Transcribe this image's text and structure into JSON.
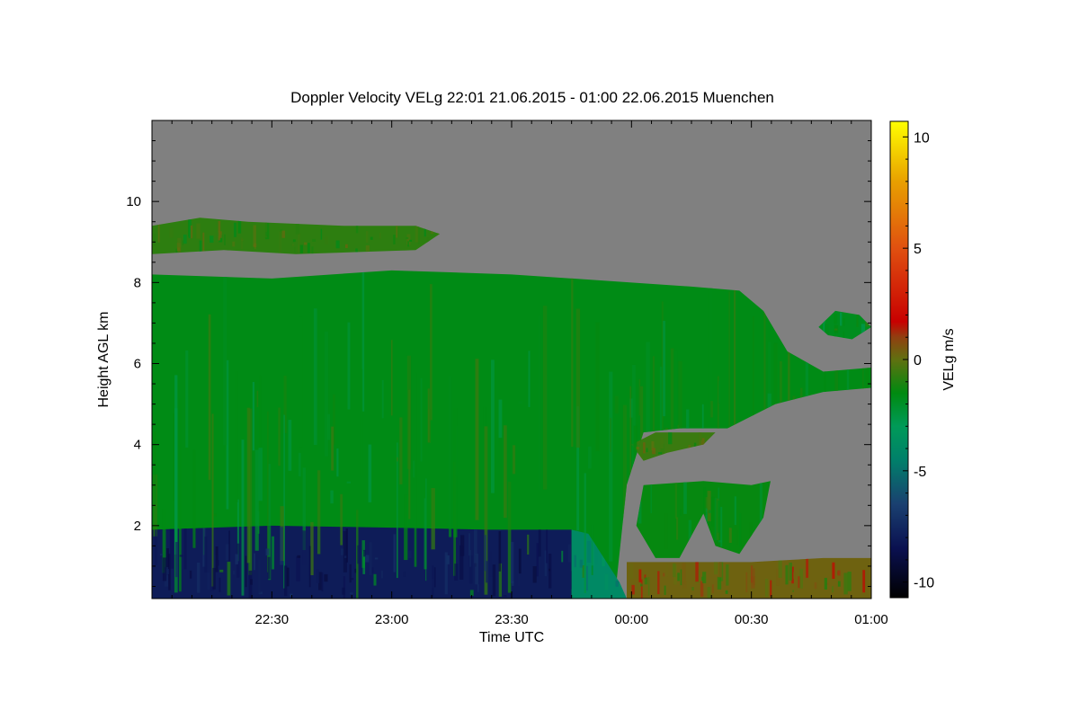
{
  "chart_data": {
    "type": "heatmap",
    "title": "Doppler Velocity VELg   22:01 21.06.2015 - 01:00 22.06.2015 Muenchen",
    "xlabel": "Time UTC",
    "ylabel": "Height AGL km",
    "xlim_hours": [
      22.0,
      25.0
    ],
    "ylim": [
      0.2,
      12.0
    ],
    "xticks": [
      {
        "t": 22.5,
        "label": "22:30"
      },
      {
        "t": 23.0,
        "label": "23:00"
      },
      {
        "t": 23.5,
        "label": "23:30"
      },
      {
        "t": 24.0,
        "label": "00:00"
      },
      {
        "t": 24.5,
        "label": "00:30"
      },
      {
        "t": 25.0,
        "label": "01:00"
      }
    ],
    "yticks": [
      {
        "v": 2,
        "label": "2"
      },
      {
        "v": 4,
        "label": "4"
      },
      {
        "v": 6,
        "label": "6"
      },
      {
        "v": 8,
        "label": "8"
      },
      {
        "v": 10,
        "label": "10"
      }
    ],
    "background_color": "#808080",
    "colorbar": {
      "label": "VELg m/s",
      "range": [
        -10.7,
        10.7
      ],
      "ticks": [
        {
          "v": 10,
          "label": "10"
        },
        {
          "v": 5,
          "label": "5"
        },
        {
          "v": 0,
          "label": "0"
        },
        {
          "v": -5,
          "label": "-5"
        },
        {
          "v": -10,
          "label": "-10"
        }
      ],
      "stops": [
        {
          "v": -10.7,
          "color": "#000000"
        },
        {
          "v": -8.5,
          "color": "#0a1050"
        },
        {
          "v": -6.5,
          "color": "#1a4070"
        },
        {
          "v": -4.5,
          "color": "#00806a"
        },
        {
          "v": -3.0,
          "color": "#009a58"
        },
        {
          "v": -1.5,
          "color": "#008a10"
        },
        {
          "v": 0.0,
          "color": "#607010"
        },
        {
          "v": 1.0,
          "color": "#904010"
        },
        {
          "v": 1.7,
          "color": "#c80000"
        },
        {
          "v": 5.0,
          "color": "#e05010"
        },
        {
          "v": 8.0,
          "color": "#e8a000"
        },
        {
          "v": 10.7,
          "color": "#ffff00"
        }
      ]
    },
    "regions": [
      {
        "name": "upper-cloud-layer",
        "velocity": -0.8,
        "points": [
          [
            22.0,
            8.7
          ],
          [
            22.0,
            9.4
          ],
          [
            22.2,
            9.6
          ],
          [
            22.4,
            9.5
          ],
          [
            22.8,
            9.4
          ],
          [
            23.1,
            9.4
          ],
          [
            23.2,
            9.2
          ],
          [
            23.1,
            8.8
          ],
          [
            22.6,
            8.7
          ],
          [
            22.3,
            8.8
          ]
        ]
      },
      {
        "name": "main-cloud",
        "velocity": -1.6,
        "points": [
          [
            22.0,
            0.2
          ],
          [
            22.0,
            8.2
          ],
          [
            22.5,
            8.1
          ],
          [
            23.0,
            8.3
          ],
          [
            23.5,
            8.2
          ],
          [
            24.0,
            8.0
          ],
          [
            24.25,
            7.9
          ],
          [
            24.45,
            7.8
          ],
          [
            24.55,
            7.3
          ],
          [
            24.65,
            6.3
          ],
          [
            24.8,
            5.8
          ],
          [
            25.0,
            5.9
          ],
          [
            25.0,
            5.4
          ],
          [
            24.8,
            5.3
          ],
          [
            24.6,
            5.0
          ],
          [
            24.4,
            4.4
          ],
          [
            24.2,
            4.4
          ],
          [
            24.05,
            4.3
          ],
          [
            23.98,
            3.0
          ],
          [
            23.93,
            0.2
          ]
        ]
      },
      {
        "name": "boundary-layer-downdraft",
        "velocity": -8.0,
        "points": [
          [
            22.0,
            0.2
          ],
          [
            22.0,
            1.9
          ],
          [
            22.5,
            2.0
          ],
          [
            23.0,
            1.95
          ],
          [
            23.4,
            1.9
          ],
          [
            23.75,
            1.9
          ],
          [
            23.75,
            0.2
          ]
        ]
      },
      {
        "name": "transition-zone",
        "velocity": -4.0,
        "points": [
          [
            23.75,
            0.2
          ],
          [
            23.75,
            1.9
          ],
          [
            23.82,
            1.8
          ],
          [
            23.95,
            0.6
          ],
          [
            23.98,
            0.2
          ]
        ]
      },
      {
        "name": "mid-fragment",
        "velocity": -0.6,
        "points": [
          [
            24.0,
            4.0
          ],
          [
            24.1,
            4.3
          ],
          [
            24.35,
            4.3
          ],
          [
            24.3,
            4.0
          ],
          [
            24.15,
            3.8
          ],
          [
            24.05,
            3.6
          ]
        ]
      },
      {
        "name": "low-cloud",
        "velocity": -1.4,
        "points": [
          [
            24.02,
            2.0
          ],
          [
            24.05,
            3.0
          ],
          [
            24.3,
            3.1
          ],
          [
            24.5,
            3.0
          ],
          [
            24.58,
            3.1
          ],
          [
            24.55,
            2.2
          ],
          [
            24.45,
            1.3
          ],
          [
            24.35,
            1.5
          ],
          [
            24.3,
            2.3
          ],
          [
            24.2,
            1.2
          ],
          [
            24.1,
            1.2
          ]
        ]
      },
      {
        "name": "small-cloud",
        "velocity": -1.8,
        "points": [
          [
            24.78,
            6.9
          ],
          [
            24.85,
            7.3
          ],
          [
            24.95,
            7.2
          ],
          [
            25.0,
            6.9
          ],
          [
            24.92,
            6.6
          ],
          [
            24.82,
            6.7
          ]
        ]
      },
      {
        "name": "ground-clutter",
        "velocity": 0.3,
        "points": [
          [
            23.98,
            0.2
          ],
          [
            23.98,
            1.1
          ],
          [
            24.5,
            1.1
          ],
          [
            24.8,
            1.2
          ],
          [
            25.0,
            1.2
          ],
          [
            25.0,
            0.2
          ]
        ]
      }
    ]
  }
}
